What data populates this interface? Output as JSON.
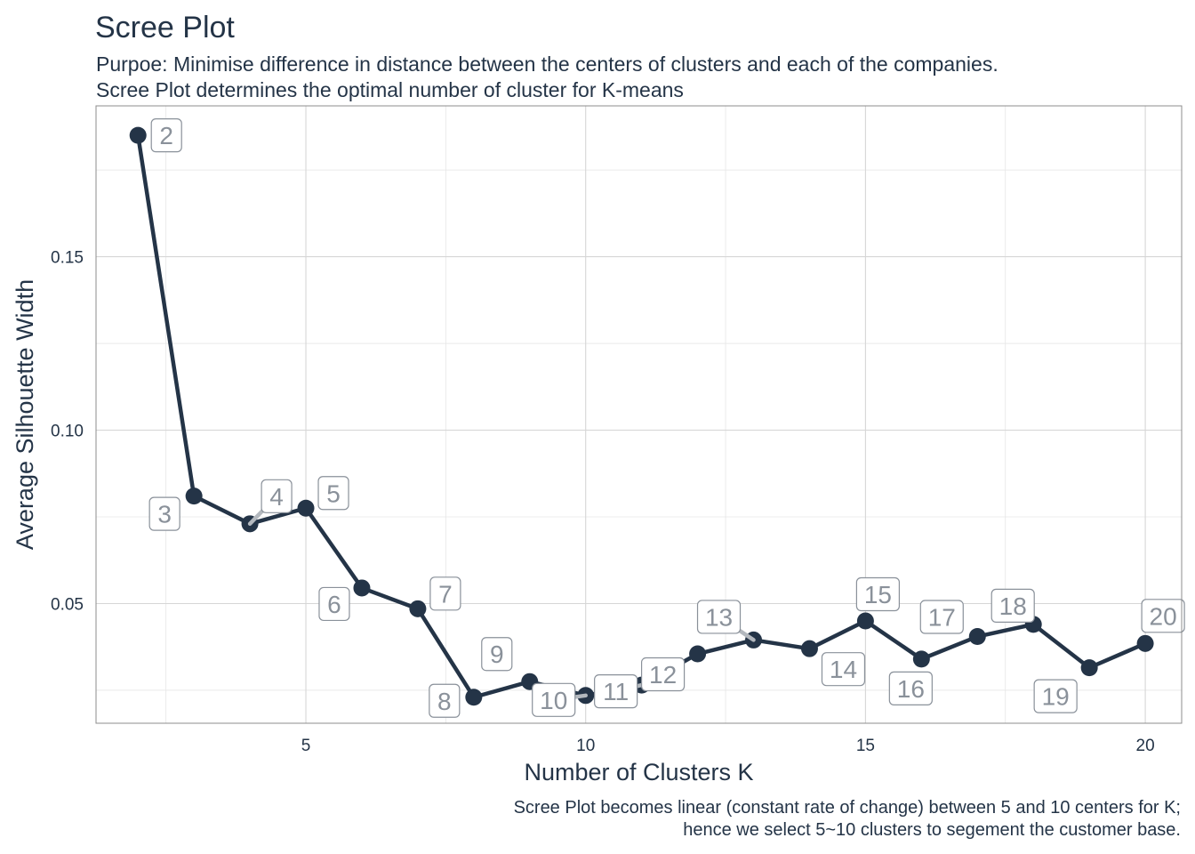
{
  "chart_data": {
    "type": "line",
    "title": "Scree Plot",
    "subtitle": [
      "Purpoe: Minimise difference in distance between the centers of clusters and each of the companies.",
      "Scree Plot determines the optimal number of cluster for K-means"
    ],
    "caption": [
      "Scree Plot becomes linear (constant rate of change) between 5 and 10 centers for K;",
      "hence we select 5~10 clusters to segement the customer base."
    ],
    "xlabel": "Number of Clusters K",
    "ylabel": "Average Silhouette Width",
    "xlim": [
      1.25,
      20.65
    ],
    "ylim": [
      0.0155,
      0.1935
    ],
    "x_ticks": [
      5,
      10,
      15,
      20
    ],
    "x_tick_labels": [
      "5",
      "10",
      "15",
      "20"
    ],
    "y_ticks": [
      0.05,
      0.1,
      0.15
    ],
    "y_tick_labels": [
      "0.05",
      "0.10",
      "0.15"
    ],
    "grid": true,
    "series": [
      {
        "x": [
          2,
          3,
          4,
          5,
          6,
          7,
          8,
          9,
          10,
          11,
          12,
          13,
          14,
          15,
          16,
          17,
          18,
          19,
          20
        ],
        "y": [
          0.185,
          0.081,
          0.073,
          0.0775,
          0.0545,
          0.0485,
          0.023,
          0.0275,
          0.0235,
          0.0265,
          0.0355,
          0.0395,
          0.037,
          0.045,
          0.034,
          0.0405,
          0.044,
          0.0315,
          0.0385
        ],
        "labels": [
          "2",
          "3",
          "4",
          "5",
          "6",
          "7",
          "8",
          "9",
          "10",
          "11",
          "12",
          "13",
          "14",
          "15",
          "16",
          "17",
          "18",
          "19",
          "20"
        ]
      }
    ],
    "colors": {
      "line": "#243447",
      "point": "#243447",
      "label_text": "#8a919a",
      "label_border": "#8a919a",
      "grid": "#d6d6d6",
      "panel_border": "#8c8c8c"
    }
  }
}
